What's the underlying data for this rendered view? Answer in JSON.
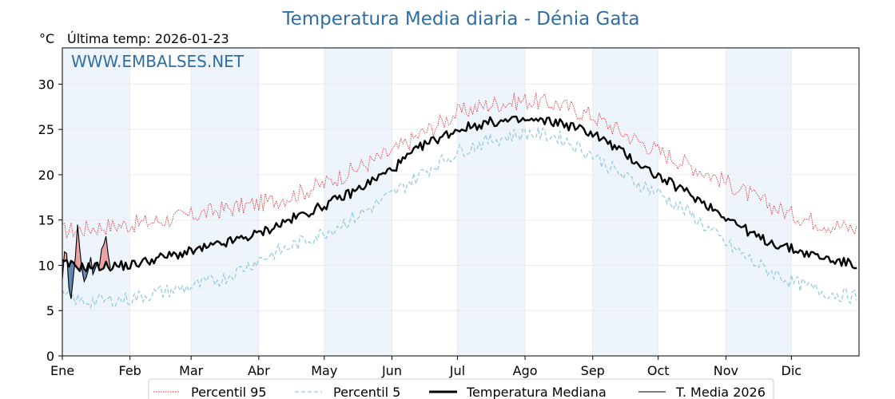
{
  "chart_data": {
    "type": "line",
    "title": "Temperatura Media diaria - Dénia Gata",
    "unit_label": "°C",
    "subtitle": "Última temp: 2026-01-23",
    "watermark": "WWW.EMBALSES.NET",
    "xlabel": "",
    "ylabel": "",
    "ylim": [
      0,
      34
    ],
    "y_ticks": [
      0,
      5,
      10,
      15,
      20,
      25,
      30
    ],
    "x_range_days": [
      1,
      366
    ],
    "x_ticks": [
      {
        "label": "Ene",
        "day": 1
      },
      {
        "label": "Feb",
        "day": 32
      },
      {
        "label": "Mar",
        "day": 60
      },
      {
        "label": "Abr",
        "day": 91
      },
      {
        "label": "May",
        "day": 121
      },
      {
        "label": "Jun",
        "day": 152
      },
      {
        "label": "Jul",
        "day": 182
      },
      {
        "label": "Ago",
        "day": 213
      },
      {
        "label": "Sep",
        "day": 244
      },
      {
        "label": "Oct",
        "day": 274
      },
      {
        "label": "Nov",
        "day": 305
      },
      {
        "label": "Dic",
        "day": 335
      }
    ],
    "grid": true,
    "alternating_month_shading": true,
    "legend_position": "bottom-center",
    "colors": {
      "p95": "#e8202a",
      "p5": "#8fc9dc",
      "median": "#000000",
      "current": "#000000",
      "above_fill": "#e8a0a0",
      "below_fill": "#5b84b0",
      "month_shade": "#eef4fb",
      "title": "#2f6ea5"
    },
    "series": [
      {
        "name": "Percentil 95",
        "key": "p95",
        "style": "dotted",
        "x": [
          1,
          10,
          20,
          32,
          45,
          60,
          75,
          91,
          105,
          121,
          135,
          152,
          166,
          182,
          197,
          213,
          228,
          244,
          258,
          274,
          289,
          305,
          320,
          335,
          350,
          365
        ],
        "values": [
          13.8,
          14.0,
          14.3,
          14.5,
          14.9,
          15.5,
          16.2,
          16.8,
          17.6,
          19.0,
          20.6,
          22.5,
          24.6,
          26.8,
          27.8,
          28.2,
          27.8,
          26.5,
          24.6,
          22.6,
          21.0,
          19.2,
          17.2,
          15.6,
          14.6,
          14.0
        ]
      },
      {
        "name": "Percentil 5",
        "key": "p5",
        "style": "dashed",
        "x": [
          1,
          10,
          20,
          32,
          45,
          60,
          75,
          91,
          105,
          121,
          135,
          152,
          166,
          182,
          197,
          213,
          228,
          244,
          258,
          274,
          289,
          305,
          320,
          335,
          350,
          365
        ],
        "values": [
          6.6,
          6.0,
          6.1,
          6.3,
          7.0,
          7.6,
          8.6,
          10.6,
          12.0,
          13.6,
          15.3,
          17.8,
          20.2,
          22.5,
          23.8,
          24.6,
          24.2,
          22.2,
          19.8,
          18.0,
          15.6,
          12.4,
          10.0,
          8.2,
          7.0,
          6.5
        ]
      },
      {
        "name": "Temperatura Mediana",
        "key": "median",
        "style": "thick",
        "x": [
          1,
          10,
          20,
          32,
          45,
          60,
          75,
          91,
          105,
          121,
          135,
          152,
          166,
          182,
          197,
          213,
          228,
          244,
          258,
          274,
          289,
          305,
          320,
          335,
          350,
          365
        ],
        "values": [
          10.2,
          9.8,
          9.9,
          10.0,
          10.8,
          11.5,
          12.4,
          13.5,
          15.0,
          16.6,
          18.2,
          20.6,
          23.2,
          25.0,
          25.8,
          26.0,
          25.8,
          24.6,
          22.4,
          19.8,
          17.8,
          15.4,
          13.0,
          11.8,
          10.8,
          10.0
        ]
      },
      {
        "name": "T. Media 2026",
        "key": "current",
        "style": "thin",
        "x": [
          1,
          2,
          3,
          4,
          5,
          6,
          7,
          8,
          9,
          10,
          11,
          12,
          13,
          14,
          15,
          16,
          17,
          18,
          19,
          20,
          21,
          22,
          23
        ],
        "values": [
          8.4,
          11.5,
          11.3,
          7.5,
          6.3,
          8.6,
          11.0,
          14.5,
          11.8,
          9.5,
          8.2,
          8.7,
          9.6,
          10.9,
          9.0,
          9.6,
          10.2,
          10.0,
          11.8,
          12.3,
          13.2,
          11.2,
          9.7
        ]
      }
    ]
  }
}
